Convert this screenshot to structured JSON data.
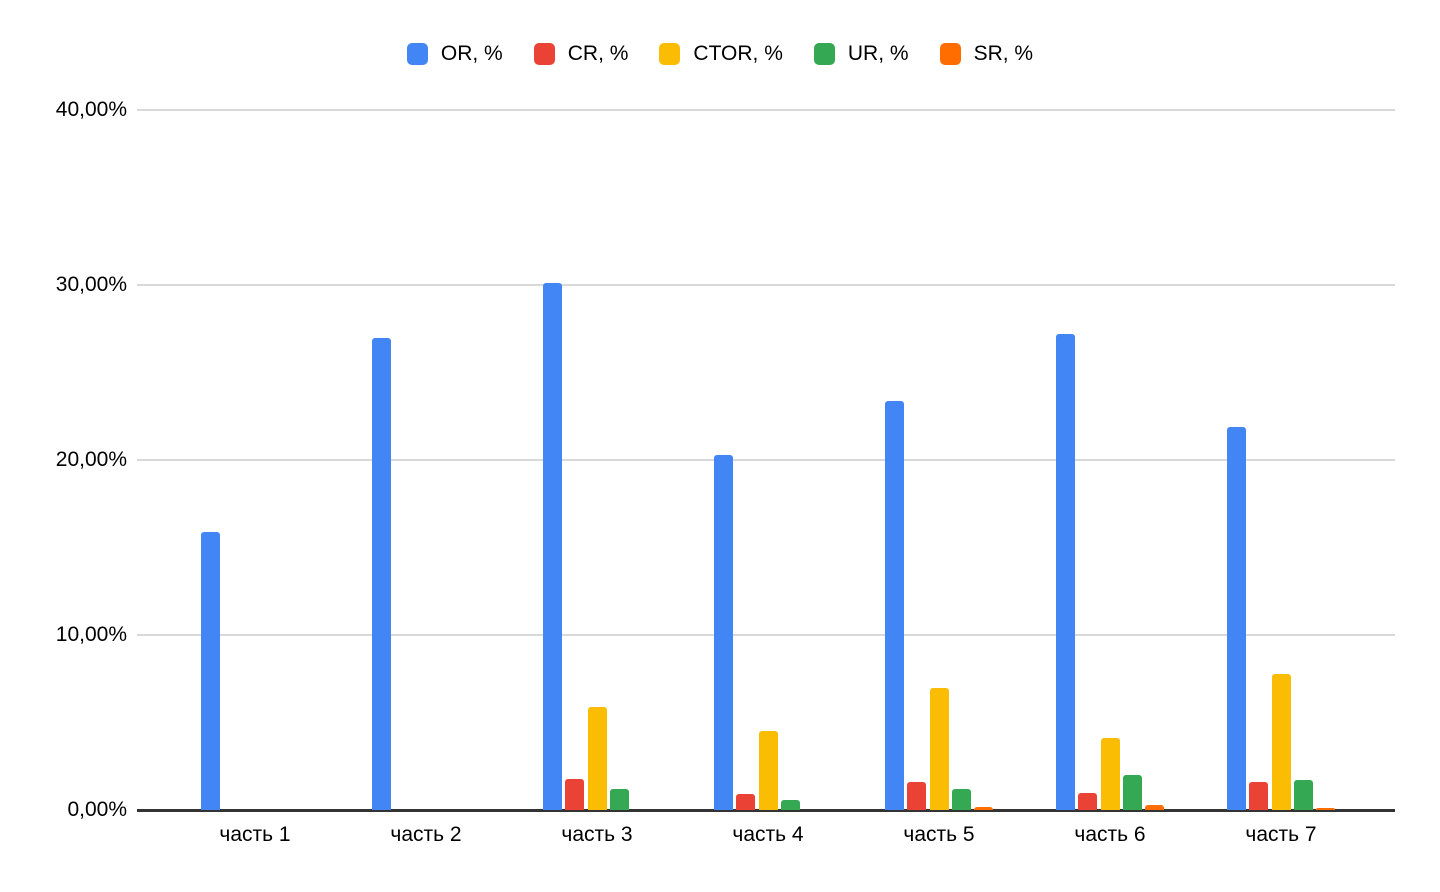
{
  "chart_data": {
    "type": "bar",
    "categories": [
      "часть 1",
      "часть 2",
      "часть 3",
      "часть 4",
      "часть 5",
      "часть 6",
      "часть 7"
    ],
    "series": [
      {
        "id": "or",
        "name": "OR, %",
        "color": "#4285F4",
        "values": [
          15.9,
          27.0,
          30.1,
          20.3,
          23.4,
          27.2,
          21.9
        ]
      },
      {
        "id": "cr",
        "name": "CR, %",
        "color": "#EA4335",
        "values": [
          0,
          0,
          1.8,
          0.9,
          1.6,
          1.0,
          1.6
        ]
      },
      {
        "id": "ctor",
        "name": "CTOR, %",
        "color": "#FBBC04",
        "values": [
          0,
          0,
          5.9,
          4.5,
          7.0,
          4.1,
          7.8
        ]
      },
      {
        "id": "ur",
        "name": "UR, %",
        "color": "#34A853",
        "values": [
          0,
          0,
          1.2,
          0.6,
          1.2,
          2.0,
          1.7
        ]
      },
      {
        "id": "sr",
        "name": "SR, %",
        "color": "#FF6D01",
        "values": [
          0,
          0,
          0,
          0,
          0.2,
          0.3,
          0.1
        ]
      }
    ],
    "title": "",
    "xlabel": "",
    "ylabel": "",
    "ylim": [
      0,
      40
    ],
    "yticks": [
      {
        "value": 0,
        "label": "0,00%"
      },
      {
        "value": 10,
        "label": "10,00%"
      },
      {
        "value": 20,
        "label": "20,00%"
      },
      {
        "value": 30,
        "label": "30,00%"
      },
      {
        "value": 40,
        "label": "40,00%"
      }
    ],
    "legend_position": "top",
    "grid": true,
    "colors": {
      "gridline": "#d9d9d9",
      "axis_line": "#333333",
      "tick_label": "#000000",
      "background": "#ffffff"
    }
  }
}
